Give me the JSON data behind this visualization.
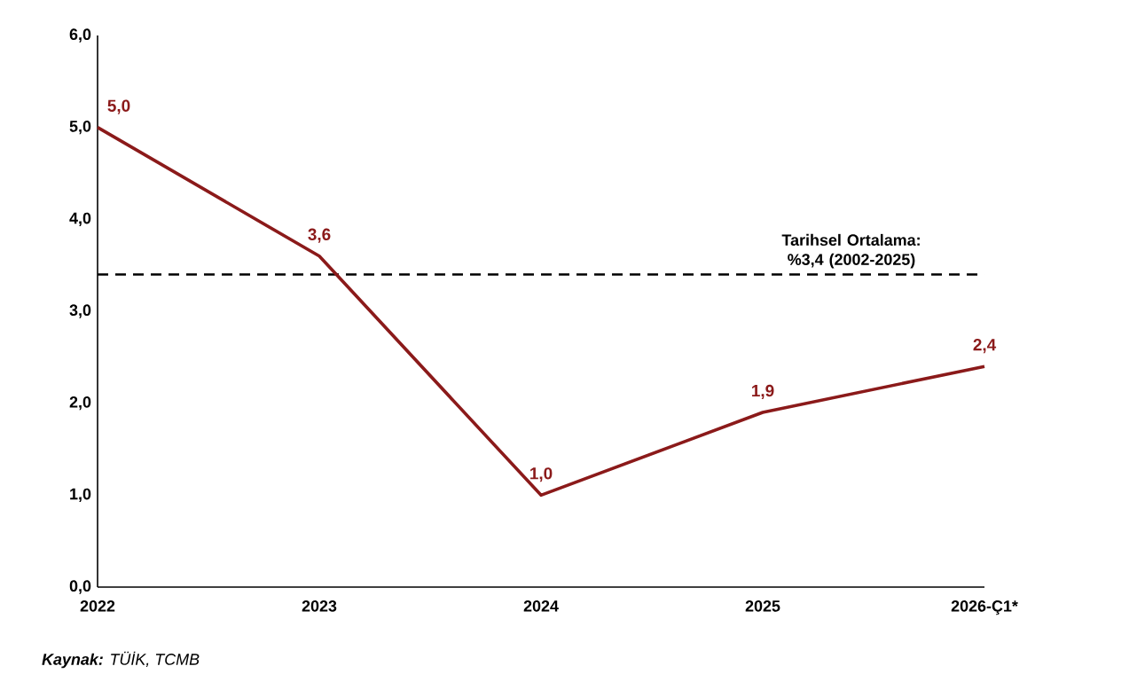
{
  "chart_data": {
    "type": "line",
    "categories": [
      "2022",
      "2023",
      "2024",
      "2025",
      "2026-Ç1*"
    ],
    "values": [
      5.0,
      3.6,
      1.0,
      1.9,
      2.4
    ],
    "value_labels": [
      "5,0",
      "3,6",
      "1,0",
      "1,9",
      "2,4"
    ],
    "color": "#8b1a1a",
    "line_style": "solid",
    "marker": "none",
    "grid": false,
    "ylim": [
      0,
      6
    ],
    "yticks": [
      {
        "value": 0,
        "label": "0,0"
      },
      {
        "value": 1,
        "label": "1,0"
      },
      {
        "value": 2,
        "label": "2,0"
      },
      {
        "value": 3,
        "label": "3,0"
      },
      {
        "value": 4,
        "label": "4,0"
      },
      {
        "value": 5,
        "label": "5,0"
      },
      {
        "value": 6,
        "label": "6,0"
      }
    ],
    "ref_lines": [
      {
        "axis": "y",
        "value": 3.4,
        "label": "Tarihsel Ortalama: %3,4 (2002-2025)",
        "color": "#000000",
        "line_style": "dashed"
      }
    ],
    "annotations": [
      "**Kaynak:** TÜİK, TCMB"
    ]
  }
}
